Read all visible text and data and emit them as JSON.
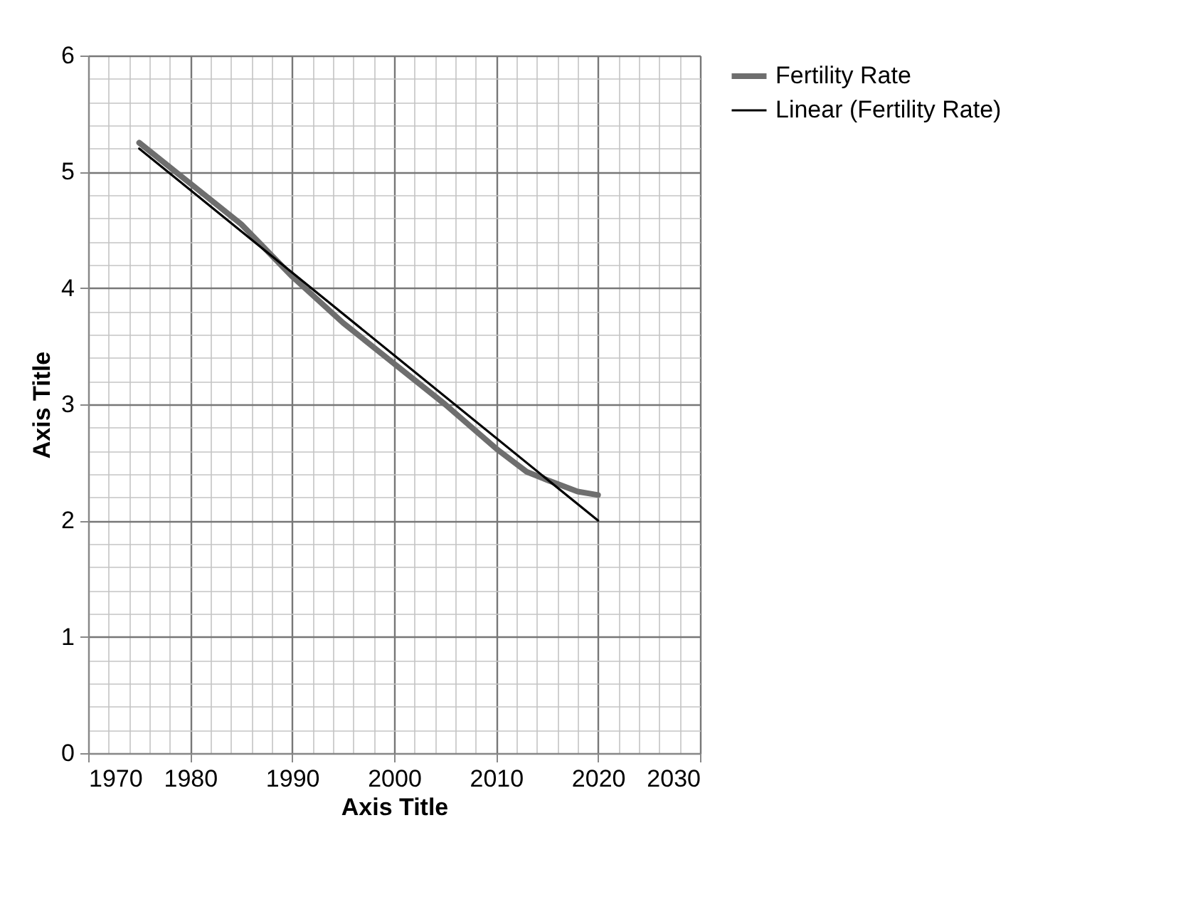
{
  "chart_data": {
    "type": "line",
    "xlabel": "Axis Title",
    "ylabel": "Axis Title",
    "xlim": [
      1970,
      2030
    ],
    "ylim": [
      0,
      6
    ],
    "xticks": [
      1970,
      {
        "value": 1972,
        "label": null
      },
      {
        "value": 1974,
        "label": null
      },
      {
        "value": 1976,
        "label": null
      },
      {
        "value": 1978,
        "label": null
      },
      1980,
      {
        "value": 1982,
        "label": null
      },
      {
        "value": 1984,
        "label": null
      },
      {
        "value": 1986,
        "label": null
      },
      {
        "value": 1988,
        "label": null
      },
      1990,
      {
        "value": 1992,
        "label": null
      },
      {
        "value": 1994,
        "label": null
      },
      {
        "value": 1996,
        "label": null
      },
      {
        "value": 1998,
        "label": null
      },
      2000,
      {
        "value": 2002,
        "label": null
      },
      {
        "value": 2004,
        "label": null
      },
      {
        "value": 2006,
        "label": null
      },
      {
        "value": 2008,
        "label": null
      },
      2010,
      {
        "value": 2012,
        "label": null
      },
      {
        "value": 2014,
        "label": null
      },
      {
        "value": 2016,
        "label": null
      },
      {
        "value": 2018,
        "label": null
      },
      2020,
      {
        "value": 2022,
        "label": null
      },
      {
        "value": 2024,
        "label": null
      },
      {
        "value": 2026,
        "label": null
      },
      {
        "value": 2028,
        "label": null
      },
      2030
    ],
    "yticks": [
      0,
      {
        "value": 0.2,
        "label": null
      },
      {
        "value": 0.4,
        "label": null
      },
      {
        "value": 0.6,
        "label": null
      },
      {
        "value": 0.8,
        "label": null
      },
      1,
      {
        "value": 1.2,
        "label": null
      },
      {
        "value": 1.4,
        "label": null
      },
      {
        "value": 1.6,
        "label": null
      },
      {
        "value": 1.8,
        "label": null
      },
      2,
      {
        "value": 2.2,
        "label": null
      },
      {
        "value": 2.4,
        "label": null
      },
      {
        "value": 2.6,
        "label": null
      },
      {
        "value": 2.8,
        "label": null
      },
      3,
      {
        "value": 3.2,
        "label": null
      },
      {
        "value": 3.4,
        "label": null
      },
      {
        "value": 3.6,
        "label": null
      },
      {
        "value": 3.8,
        "label": null
      },
      4,
      {
        "value": 4.2,
        "label": null
      },
      {
        "value": 4.4,
        "label": null
      },
      {
        "value": 4.6,
        "label": null
      },
      {
        "value": 4.8,
        "label": null
      },
      5,
      {
        "value": 5.2,
        "label": null
      },
      {
        "value": 5.4,
        "label": null
      },
      {
        "value": 5.6,
        "label": null
      },
      {
        "value": 5.8,
        "label": null
      },
      6
    ],
    "grid": true,
    "legend": "right",
    "marker": "none",
    "series": [
      {
        "name": "Fertility Rate",
        "color": "#6e6e6e",
        "line_style": "solid",
        "x": [
          1975,
          1980,
          1985,
          1990,
          1995,
          2000,
          2005,
          2010,
          2013,
          2015,
          2018,
          2020
        ],
        "values": [
          5.25,
          4.9,
          4.55,
          4.1,
          3.7,
          3.35,
          3.0,
          2.62,
          2.42,
          2.35,
          2.25,
          2.22
        ]
      },
      {
        "name": "Linear (Fertility Rate)",
        "color": "#000000",
        "line_style": "solid",
        "x": [
          1975,
          2020
        ],
        "values": [
          5.2,
          2.0
        ]
      }
    ]
  }
}
